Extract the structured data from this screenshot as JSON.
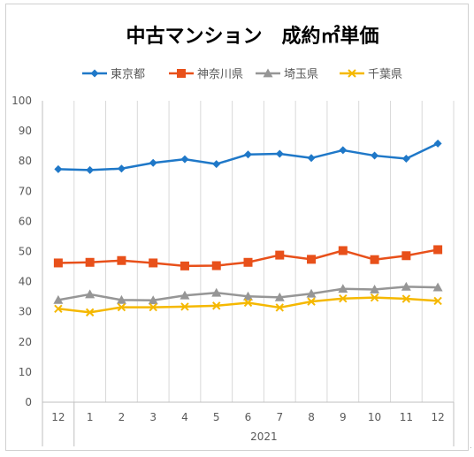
{
  "chart_data": {
    "type": "line",
    "title": "中古マンション　成約㎡単価",
    "xlabel": "",
    "ylabel": "",
    "categories": [
      "12",
      "1",
      "2",
      "3",
      "4",
      "5",
      "6",
      "7",
      "8",
      "9",
      "10",
      "11",
      "12"
    ],
    "year_label": "2021",
    "ylim": [
      0,
      100
    ],
    "yticks": [
      0,
      10,
      20,
      30,
      40,
      50,
      60,
      70,
      80,
      90,
      100
    ],
    "grid": "vertical",
    "legend_position": "top",
    "series": [
      {
        "name": "東京都",
        "color": "#1f78c8",
        "marker": "diamond",
        "values": [
          77.3,
          77.0,
          77.5,
          79.4,
          80.6,
          79.0,
          82.2,
          82.4,
          81.0,
          83.6,
          81.8,
          80.8,
          85.8
        ]
      },
      {
        "name": "神奈川県",
        "color": "#e8501a",
        "marker": "square",
        "values": [
          46.2,
          46.4,
          47.0,
          46.2,
          45.2,
          45.3,
          46.4,
          48.8,
          47.4,
          50.3,
          47.3,
          48.6,
          50.6
        ]
      },
      {
        "name": "埼玉県",
        "color": "#969696",
        "marker": "triangle",
        "values": [
          33.9,
          35.8,
          33.9,
          33.8,
          35.4,
          36.3,
          35.1,
          34.8,
          36.0,
          37.6,
          37.4,
          38.3,
          38.1
        ]
      },
      {
        "name": "千葉県",
        "color": "#f5b800",
        "marker": "x",
        "values": [
          31.0,
          29.8,
          31.5,
          31.5,
          31.7,
          32.0,
          33.0,
          31.4,
          33.4,
          34.4,
          34.7,
          34.3,
          33.6
        ]
      }
    ]
  }
}
